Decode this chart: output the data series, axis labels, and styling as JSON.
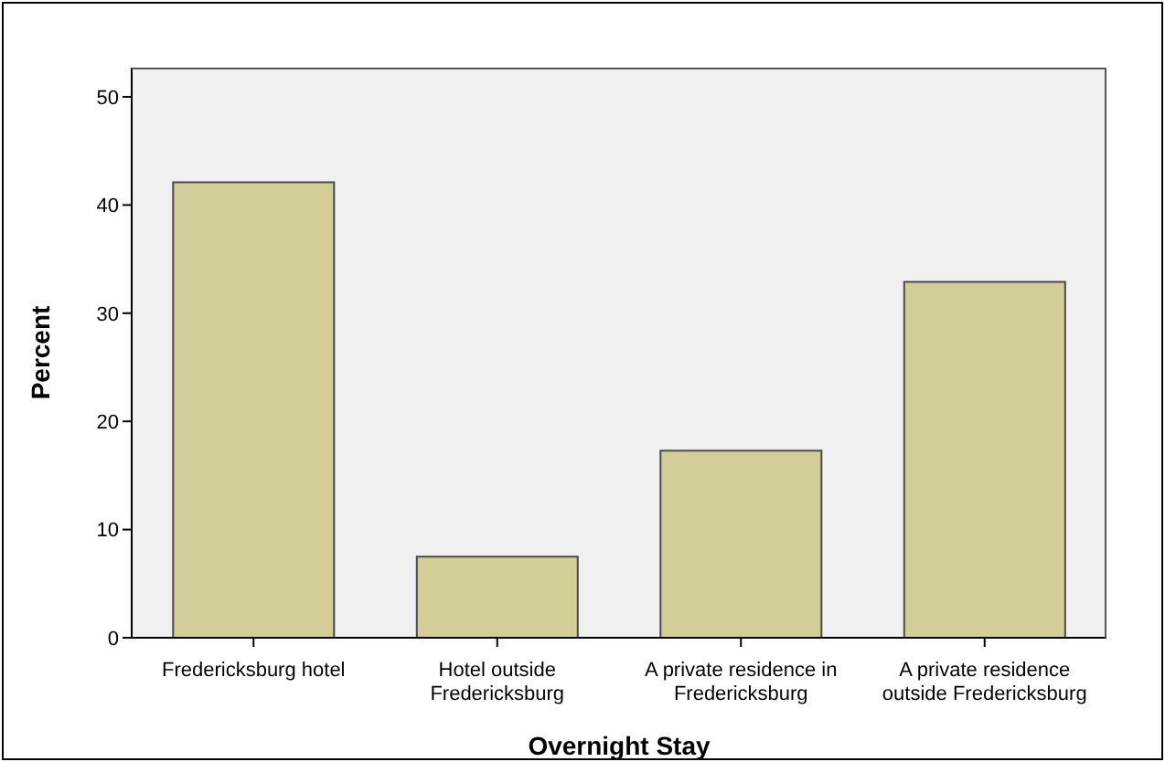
{
  "chart_data": {
    "type": "bar",
    "xlabel": "Overnight Stay",
    "ylabel": "Percent",
    "categories": [
      "Fredericksburg hotel",
      "Hotel outside Fredericksburg",
      "A private residence in Fredericksburg",
      "A private residence outside Fredericksburg"
    ],
    "values": [
      42.1,
      7.5,
      17.3,
      32.9
    ],
    "color": "#d3ce97",
    "ylim": [
      0,
      52.7
    ],
    "yticks": [
      0,
      10,
      20,
      30,
      40,
      50
    ],
    "grid": false
  }
}
